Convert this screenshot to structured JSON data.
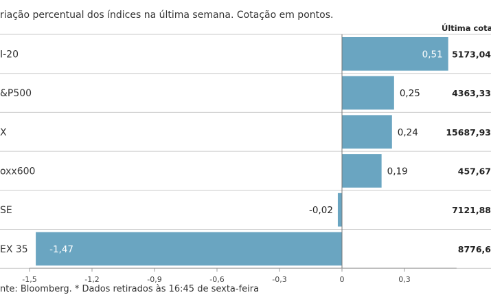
{
  "header": {
    "subtitle": "riação percentual dos índices na última semana. Cotação em pontos.",
    "close_column": "Última cotaç"
  },
  "footnote": "nte: Bloomberg.  * Dados retirados às 16:45 de sexta-feira",
  "chart_data": {
    "type": "bar",
    "orientation": "horizontal",
    "categories": [
      "I-20",
      "&P500",
      "X",
      "oxx600",
      "SE",
      "EX 35"
    ],
    "values": [
      0.51,
      0.25,
      0.24,
      0.19,
      -0.02,
      -1.47
    ],
    "value_labels": [
      "0,51",
      "0,25",
      "0,24",
      "0,19",
      "-0,02",
      "-1,47"
    ],
    "last_close_labels": [
      "5173,04",
      "4363,33",
      "15687,93",
      "457,67",
      "7121,88",
      "8776,6"
    ],
    "x_ticks": [
      -1.5,
      -1.2,
      -0.9,
      -0.6,
      -0.3,
      0,
      0.3
    ],
    "x_tick_labels": [
      "-1,5",
      "-1,2",
      "-0,9",
      "-0,6",
      "-0,3",
      "0",
      "0,3"
    ],
    "xlim": [
      -1.5,
      0.5
    ],
    "bar_color": "#6aa5c1",
    "grid": false
  }
}
